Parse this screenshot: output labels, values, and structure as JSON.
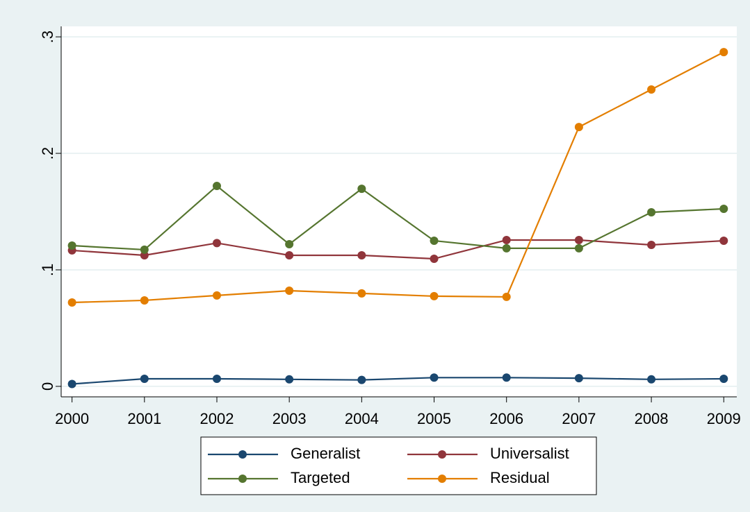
{
  "chart_data": {
    "type": "line",
    "x": [
      2000,
      2001,
      2002,
      2003,
      2004,
      2005,
      2006,
      2007,
      2008,
      2009
    ],
    "series": [
      {
        "name": "Generalist",
        "color": "#1a476f",
        "values": [
          0.002,
          0.0065,
          0.0065,
          0.006,
          0.0055,
          0.0075,
          0.0075,
          0.007,
          0.006,
          0.0065
        ]
      },
      {
        "name": "Universalist",
        "color": "#90353b",
        "values": [
          0.1167,
          0.1125,
          0.123,
          0.1125,
          0.1125,
          0.1095,
          0.1256,
          0.1256,
          0.1214,
          0.125
        ]
      },
      {
        "name": "Targeted",
        "color": "#55752f",
        "values": [
          0.1208,
          0.1173,
          0.172,
          0.122,
          0.1696,
          0.125,
          0.1185,
          0.1185,
          0.1494,
          0.1524
        ]
      },
      {
        "name": "Residual",
        "color": "#e37e00",
        "values": [
          0.072,
          0.0738,
          0.078,
          0.0821,
          0.0798,
          0.0774,
          0.0768,
          0.2226,
          0.2548,
          0.2869
        ]
      }
    ],
    "xlim": [
      1999.85,
      2009.18
    ],
    "xticks": [
      2000,
      2001,
      2002,
      2003,
      2004,
      2005,
      2006,
      2007,
      2008,
      2009
    ],
    "ylim": [
      -0.009,
      0.309
    ],
    "yticks": [
      0,
      {
        "value": 0.1,
        "label": ".1"
      },
      {
        "value": 0.2,
        "label": ".2"
      },
      {
        "value": 0.3,
        "label": ".3"
      }
    ],
    "grid": true,
    "legend": "bottom"
  }
}
